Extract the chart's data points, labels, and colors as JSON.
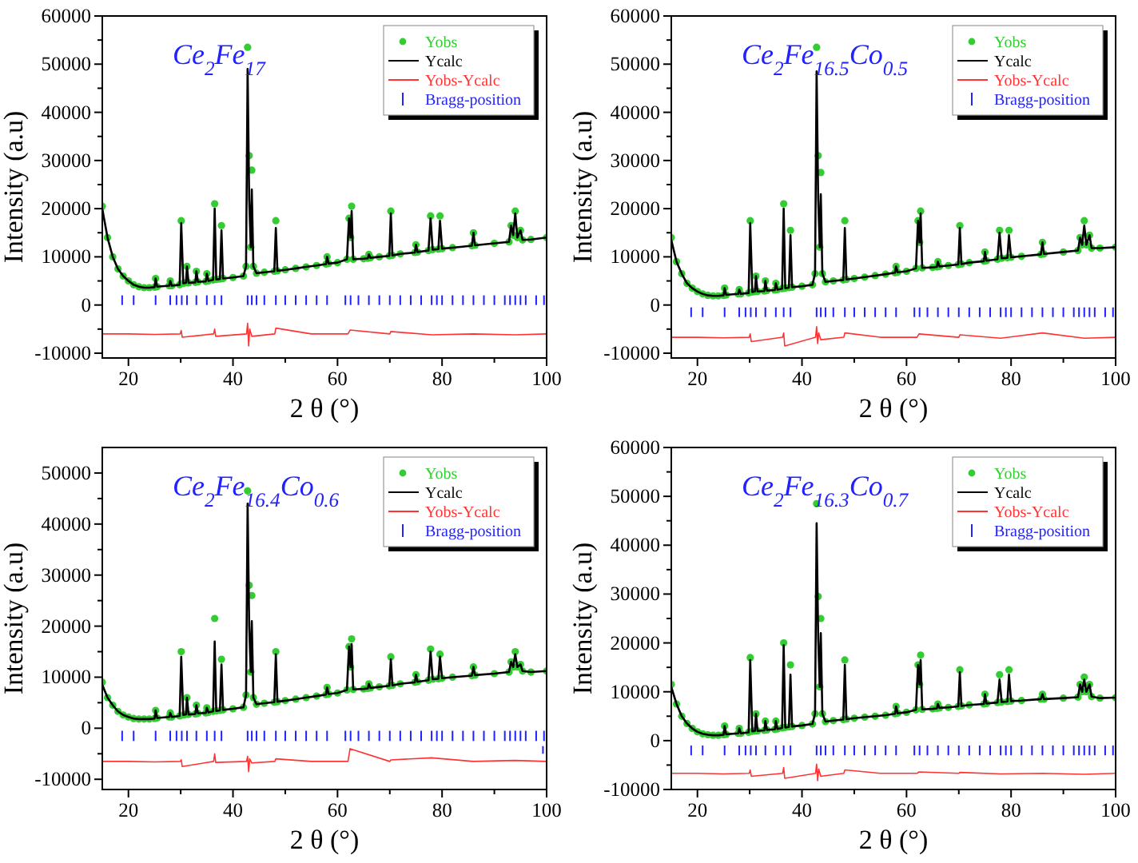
{
  "chart_data": [
    {
      "type": "line",
      "title": "Ce$_{2}$Fe$_{17}$",
      "xlabel": "2 θ (°)",
      "ylabel": "Intensity (a.u)",
      "legend": "top right",
      "xlim": [
        15,
        100
      ],
      "xticks": [
        20,
        {
          "value": 30,
          "label": null
        },
        40,
        {
          "value": 50,
          "label": null
        },
        60,
        {
          "value": 70,
          "label": null
        },
        80,
        {
          "value": 90,
          "label": null
        },
        100
      ],
      "ylim": [
        -11000,
        60000
      ],
      "yticks": [
        -10000,
        {
          "value": -5000,
          "label": null
        },
        0,
        {
          "value": 5000,
          "label": null
        },
        10000,
        {
          "value": 15000,
          "label": null
        },
        20000,
        {
          "value": 25000,
          "label": null
        },
        30000,
        {
          "value": 35000,
          "label": null
        },
        40000,
        {
          "value": 45000,
          "label": null
        },
        50000,
        {
          "value": 55000,
          "label": null
        },
        60000
      ],
      "x": [
        15,
        16,
        17,
        18,
        19,
        20,
        21,
        22,
        23,
        24,
        25,
        25.2,
        25.5,
        27.8,
        28,
        28.3,
        29.8,
        30.1,
        30.5,
        31,
        31.2,
        31.5,
        32.8,
        33,
        33.3,
        34.8,
        35,
        35.3,
        36.2,
        36.5,
        36.8,
        37.5,
        37.8,
        38.1,
        40,
        42,
        42.5,
        42.8,
        43.1,
        43.4,
        43.6,
        43.9,
        44.5,
        46,
        47.9,
        48.2,
        48.5,
        50,
        52,
        54,
        56,
        57.8,
        58,
        58.3,
        60,
        61.8,
        62.2,
        62.5,
        62.7,
        63,
        65,
        65.8,
        66,
        66.3,
        68,
        69.9,
        70.2,
        70.5,
        72,
        74.8,
        75,
        75.3,
        77.4,
        77.8,
        78.2,
        79.3,
        79.6,
        80,
        82,
        85.7,
        86,
        86.3,
        90,
        92.8,
        93.2,
        93.6,
        94,
        94.4,
        95,
        95.4,
        97,
        100
      ],
      "series": [
        {
          "name": "Yobs",
          "type": "scatter",
          "marker": "circle",
          "color": "#33cc33",
          "values": [
            20500,
            14000,
            10000,
            7500,
            6000,
            5000,
            4200,
            3800,
            3600,
            3600,
            3700,
            5500,
            3800,
            4000,
            5000,
            4000,
            4200,
            17500,
            4500,
            4600,
            8000,
            4600,
            4700,
            7000,
            4800,
            4900,
            6500,
            5000,
            5200,
            21000,
            5300,
            5400,
            16500,
            5500,
            5700,
            6000,
            8000,
            53500,
            31000,
            12000,
            28000,
            8000,
            6600,
            6800,
            7000,
            17500,
            7100,
            7300,
            7600,
            7900,
            8200,
            8500,
            10000,
            8600,
            8800,
            9500,
            18000,
            14000,
            20500,
            9500,
            9600,
            9700,
            10500,
            9800,
            10000,
            10200,
            19500,
            10300,
            10600,
            10900,
            12500,
            11000,
            11300,
            18500,
            11500,
            11600,
            18500,
            11700,
            11900,
            12300,
            15000,
            12400,
            12800,
            13100,
            16500,
            14500,
            19500,
            14000,
            15500,
            13500,
            13600,
            14000
          ]
        },
        {
          "name": "Ycalc",
          "color": "#000000",
          "values": [
            20000,
            14000,
            10000,
            7500,
            6000,
            5000,
            4200,
            3800,
            3600,
            3600,
            3700,
            5500,
            3800,
            4000,
            5000,
            4000,
            4200,
            17000,
            4500,
            4600,
            8000,
            4600,
            4700,
            7000,
            4800,
            4900,
            6500,
            5000,
            5200,
            20000,
            5300,
            5400,
            15500,
            5500,
            5700,
            6000,
            8000,
            49000,
            22000,
            12000,
            24000,
            8000,
            6600,
            6800,
            7000,
            16000,
            7100,
            7300,
            7600,
            7900,
            8200,
            8500,
            10000,
            8600,
            8800,
            9500,
            18000,
            14000,
            19500,
            9500,
            9600,
            9700,
            10500,
            9800,
            10000,
            10200,
            19000,
            10300,
            10600,
            10900,
            12500,
            11000,
            11300,
            18000,
            11500,
            11600,
            17500,
            11700,
            11900,
            12300,
            15000,
            12400,
            12800,
            13100,
            16500,
            14500,
            19000,
            14000,
            15500,
            13500,
            13600,
            14000
          ]
        },
        {
          "name": "Yobs-Ycalc",
          "type": "line",
          "color": "#ff3333",
          "x": [
            15,
            20,
            25,
            29.9,
            30.1,
            30.3,
            36.3,
            36.5,
            36.7,
            42.6,
            42.8,
            43.0,
            43.2,
            43.6,
            48.0,
            48.2,
            55,
            62.0,
            62.4,
            70.0,
            70.2,
            78,
            86,
            94,
            100
          ],
          "values": [
            -6000,
            -6000,
            -6100,
            -6000,
            -5300,
            -6700,
            -6000,
            -5000,
            -6500,
            -6000,
            -3800,
            -8500,
            -5000,
            -6500,
            -6000,
            -4800,
            -6000,
            -6000,
            -5200,
            -6000,
            -5500,
            -6200,
            -6000,
            -6200,
            -6000
          ]
        },
        {
          "name": "Bragg-position",
          "type": "bar",
          "color": "#2222ff",
          "x": [
            18.8,
            21,
            25.2,
            28,
            29.2,
            30.2,
            31.2,
            33,
            35,
            36.5,
            37.8,
            42.8,
            43.6,
            44.5,
            46,
            48.2,
            50,
            52,
            54,
            56,
            58,
            61.5,
            62.5,
            64,
            66,
            68,
            70,
            72,
            74,
            76,
            78,
            79,
            80,
            82,
            84,
            86,
            88,
            90,
            92,
            93,
            94,
            95,
            96,
            98,
            99.5
          ],
          "base": [
            0,
            0,
            0,
            0,
            0,
            0,
            0,
            0,
            0,
            0,
            0,
            0,
            0,
            0,
            0,
            0,
            0,
            0,
            0,
            0,
            0,
            0,
            0,
            0,
            0,
            0,
            0,
            0,
            0,
            0,
            0,
            0,
            0,
            0,
            0,
            0,
            0,
            0,
            0,
            0,
            0,
            0,
            0,
            0,
            0
          ],
          "values": [
            2000,
            2000,
            2000,
            2000,
            2000,
            2000,
            2000,
            2000,
            2000,
            2000,
            2000,
            2000,
            2000,
            2000,
            2000,
            2000,
            2000,
            2000,
            2000,
            2000,
            2000,
            2000,
            2000,
            2000,
            2000,
            2000,
            2000,
            2000,
            2000,
            2000,
            2000,
            2000,
            2000,
            2000,
            2000,
            2000,
            2000,
            2000,
            2000,
            2000,
            2000,
            2000,
            2000,
            2000,
            2000
          ]
        }
      ]
    },
    {
      "type": "line",
      "title": "Ce$_{2}$Fe$_{16.5}$Co$_{0.5}$",
      "xlabel": "2 θ (°)",
      "ylabel": "Intensity (a.u)",
      "legend": "top right",
      "xlim": [
        15,
        100
      ],
      "xticks": [
        20,
        {
          "value": 30,
          "label": null
        },
        40,
        {
          "value": 50,
          "label": null
        },
        60,
        {
          "value": 70,
          "label": null
        },
        80,
        {
          "value": 90,
          "label": null
        },
        100
      ],
      "ylim": [
        -11000,
        60000
      ],
      "yticks": [
        -10000,
        {
          "value": -5000,
          "label": null
        },
        0,
        {
          "value": 5000,
          "label": null
        },
        10000,
        {
          "value": 15000,
          "label": null
        },
        20000,
        {
          "value": 25000,
          "label": null
        },
        30000,
        {
          "value": 35000,
          "label": null
        },
        40000,
        {
          "value": 45000,
          "label": null
        },
        50000,
        {
          "value": 55000,
          "label": null
        },
        60000
      ],
      "x": [
        15,
        16,
        17,
        18,
        19,
        20,
        21,
        22,
        23,
        24,
        25,
        25.2,
        25.5,
        27.8,
        28,
        28.3,
        29.8,
        30.1,
        30.5,
        31,
        31.2,
        31.5,
        32.8,
        33,
        33.3,
        34.8,
        35,
        35.3,
        36.2,
        36.5,
        36.8,
        37.5,
        37.8,
        38.1,
        40,
        42,
        42.5,
        42.8,
        43.1,
        43.4,
        43.6,
        43.9,
        44.5,
        46,
        47.9,
        48.2,
        48.5,
        50,
        52,
        54,
        56,
        57.8,
        58,
        58.3,
        60,
        61.8,
        62.2,
        62.5,
        62.7,
        63,
        65,
        65.8,
        66,
        66.3,
        68,
        69.9,
        70.2,
        70.5,
        72,
        74.8,
        75,
        75.3,
        77.4,
        77.8,
        78.2,
        79.3,
        79.6,
        80,
        82,
        85.7,
        86,
        86.3,
        90,
        92.8,
        93.2,
        93.6,
        94,
        94.4,
        95,
        95.4,
        97,
        100
      ],
      "series": [
        {
          "name": "Yobs",
          "type": "scatter",
          "marker": "circle",
          "color": "#33cc33",
          "values": [
            14000,
            9000,
            6500,
            4500,
            3500,
            2800,
            2300,
            2000,
            1900,
            1900,
            2000,
            3500,
            2100,
            2300,
            3200,
            2300,
            2500,
            17500,
            2700,
            2800,
            6000,
            2800,
            2900,
            5000,
            3000,
            3100,
            4500,
            3200,
            3400,
            21000,
            3500,
            3600,
            15500,
            3700,
            3900,
            4200,
            6500,
            53500,
            31000,
            12000,
            27500,
            6500,
            4800,
            5000,
            5200,
            17500,
            5300,
            5500,
            5800,
            6100,
            6400,
            6700,
            8000,
            6800,
            7000,
            7600,
            17500,
            13000,
            19500,
            7700,
            7800,
            7900,
            9000,
            8000,
            8200,
            8400,
            16500,
            8500,
            8800,
            9100,
            11000,
            9200,
            9500,
            15500,
            9700,
            9800,
            15500,
            9900,
            10100,
            10500,
            13000,
            10600,
            11000,
            11300,
            14000,
            12500,
            17500,
            12500,
            14500,
            11800,
            11800,
            12000
          ]
        },
        {
          "name": "Ycalc",
          "color": "#000000",
          "values": [
            13500,
            9000,
            6500,
            4500,
            3500,
            2800,
            2300,
            2000,
            1900,
            1900,
            2000,
            3500,
            2100,
            2300,
            3200,
            2300,
            2500,
            17000,
            2700,
            2800,
            6000,
            2800,
            2900,
            5000,
            3000,
            3100,
            4500,
            3200,
            3400,
            20000,
            3500,
            3600,
            14500,
            3700,
            3900,
            4200,
            6500,
            48500,
            22000,
            12000,
            23000,
            6500,
            4800,
            5000,
            5200,
            16000,
            5300,
            5500,
            5800,
            6100,
            6400,
            6700,
            8000,
            6800,
            7000,
            7600,
            17500,
            13000,
            19000,
            7700,
            7800,
            7900,
            9000,
            8000,
            8200,
            8400,
            16000,
            8500,
            8800,
            9100,
            11000,
            9200,
            9500,
            15000,
            9700,
            9800,
            14500,
            9900,
            10100,
            10500,
            13000,
            10600,
            11000,
            11300,
            14000,
            12500,
            16500,
            12500,
            14500,
            11800,
            11800,
            12000
          ]
        },
        {
          "name": "Yobs-Ycalc",
          "type": "line",
          "color": "#ff3333",
          "x": [
            15,
            20,
            25,
            29.9,
            30.1,
            30.3,
            36.3,
            36.5,
            36.7,
            42.6,
            42.8,
            43.0,
            43.2,
            43.6,
            48.0,
            48.2,
            55,
            62.0,
            62.4,
            70.0,
            70.2,
            78,
            86,
            94,
            100
          ],
          "values": [
            -6700,
            -6700,
            -6800,
            -6700,
            -6000,
            -7600,
            -6700,
            -5800,
            -8500,
            -6700,
            -4500,
            -8000,
            -5800,
            -7200,
            -6700,
            -5800,
            -6700,
            -6700,
            -6000,
            -6700,
            -6200,
            -6900,
            -5800,
            -6900,
            -6700
          ]
        },
        {
          "name": "Bragg-position",
          "type": "bar",
          "color": "#2222ff",
          "x": [
            18.8,
            21,
            25.2,
            28,
            29.2,
            30.2,
            31.2,
            33,
            35,
            36.5,
            37.8,
            42.8,
            43.6,
            44.5,
            46,
            48.2,
            50,
            52,
            54,
            56,
            58,
            61.5,
            62.5,
            64,
            66,
            68,
            70,
            72,
            74,
            76,
            78,
            79,
            80,
            82,
            84,
            86,
            88,
            90,
            92,
            93,
            94,
            95,
            96,
            98,
            99.5
          ],
          "base": [
            -2500,
            -2500,
            -2500,
            -2500,
            -2500,
            -2500,
            -2500,
            -2500,
            -2500,
            -2500,
            -2500,
            -2500,
            -2500,
            -2500,
            -2500,
            -2500,
            -2500,
            -2500,
            -2500,
            -2500,
            -2500,
            -2500,
            -2500,
            -2500,
            -2500,
            -2500,
            -2500,
            -2500,
            -2500,
            -2500,
            -2500,
            -2500,
            -2500,
            -2500,
            -2500,
            -2500,
            -2500,
            -2500,
            -2500,
            -2500,
            -2500,
            -2500,
            -2500,
            -2500,
            -2500
          ],
          "values": [
            2000,
            2000,
            2000,
            2000,
            2000,
            2000,
            2000,
            2000,
            2000,
            2000,
            2000,
            2000,
            2000,
            2000,
            2000,
            2000,
            2000,
            2000,
            2000,
            2000,
            2000,
            2000,
            2000,
            2000,
            2000,
            2000,
            2000,
            2000,
            2000,
            2000,
            2000,
            2000,
            2000,
            2000,
            2000,
            2000,
            2000,
            2000,
            2000,
            2000,
            2000,
            2000,
            2000,
            2000,
            2000
          ]
        }
      ]
    },
    {
      "type": "line",
      "title": "Ce$_{2}$Fe$_{16.4}$Co$_{0.6}$",
      "xlabel": "2 θ (°)",
      "ylabel": "Intensity (a.u)",
      "legend": "top right",
      "xlim": [
        15,
        100
      ],
      "xticks": [
        20,
        {
          "value": 30,
          "label": null
        },
        40,
        {
          "value": 50,
          "label": null
        },
        60,
        {
          "value": 70,
          "label": null
        },
        80,
        {
          "value": 90,
          "label": null
        },
        100
      ],
      "ylim": [
        -12000,
        55000
      ],
      "yticks": [
        -10000,
        {
          "value": -5000,
          "label": null
        },
        0,
        {
          "value": 5000,
          "label": null
        },
        10000,
        {
          "value": 15000,
          "label": null
        },
        20000,
        {
          "value": 25000,
          "label": null
        },
        30000,
        {
          "value": 35000,
          "label": null
        },
        40000,
        {
          "value": 45000,
          "label": null
        },
        50000
      ],
      "x": [
        15,
        16,
        17,
        18,
        19,
        20,
        21,
        22,
        23,
        24,
        25,
        25.2,
        25.5,
        27.8,
        28,
        28.3,
        29.8,
        30.1,
        30.5,
        31,
        31.2,
        31.5,
        32.8,
        33,
        33.3,
        34.8,
        35,
        35.3,
        36.2,
        36.5,
        36.8,
        37.5,
        37.8,
        38.1,
        40,
        42,
        42.5,
        42.8,
        43.1,
        43.4,
        43.6,
        43.9,
        44.5,
        46,
        47.9,
        48.2,
        48.5,
        50,
        52,
        54,
        56,
        57.8,
        58,
        58.3,
        60,
        61.8,
        62.2,
        62.5,
        62.7,
        63,
        65,
        65.8,
        66,
        66.3,
        68,
        69.9,
        70.2,
        70.5,
        72,
        74.8,
        75,
        75.3,
        77.4,
        77.8,
        78.2,
        79.3,
        79.6,
        80,
        82,
        85.7,
        86,
        86.3,
        90,
        92.8,
        93.2,
        93.6,
        94,
        94.4,
        95,
        95.4,
        97,
        100
      ],
      "series": [
        {
          "name": "Yobs",
          "type": "scatter",
          "marker": "circle",
          "color": "#33cc33",
          "values": [
            9000,
            6000,
            4500,
            3300,
            2600,
            2200,
            1900,
            1800,
            1800,
            1800,
            1900,
            3500,
            2000,
            2200,
            3000,
            2200,
            2400,
            15000,
            2600,
            2700,
            6000,
            2700,
            2800,
            4500,
            2900,
            3000,
            4000,
            3100,
            3300,
            21500,
            3400,
            3500,
            13500,
            3600,
            3800,
            4100,
            6500,
            46500,
            28000,
            11000,
            26000,
            6000,
            4700,
            4900,
            5100,
            15000,
            5200,
            5400,
            5700,
            6000,
            6300,
            6600,
            8000,
            6700,
            6900,
            7500,
            16000,
            12000,
            17500,
            7600,
            7700,
            7800,
            8700,
            7900,
            8100,
            8300,
            14000,
            8400,
            8700,
            9000,
            10500,
            9100,
            9400,
            15500,
            9600,
            9700,
            14500,
            9800,
            10000,
            10300,
            12000,
            10400,
            10700,
            11000,
            13000,
            12000,
            15000,
            12000,
            12500,
            11200,
            11000,
            11200
          ]
        },
        {
          "name": "Ycalc",
          "color": "#000000",
          "values": [
            8500,
            6000,
            4500,
            3300,
            2600,
            2200,
            1900,
            1800,
            1800,
            1800,
            1900,
            3500,
            2000,
            2200,
            3000,
            2200,
            2400,
            14000,
            2600,
            2700,
            6000,
            2700,
            2800,
            4500,
            2900,
            3000,
            4000,
            3100,
            3300,
            17000,
            3400,
            3500,
            12500,
            3600,
            3800,
            4100,
            6500,
            44000,
            20000,
            11000,
            21000,
            6000,
            4700,
            4900,
            5100,
            14500,
            5200,
            5400,
            5700,
            6000,
            6300,
            6600,
            8000,
            6700,
            6900,
            7500,
            16000,
            12000,
            16500,
            7600,
            7700,
            7800,
            8700,
            7900,
            8100,
            8300,
            13500,
            8400,
            8700,
            9000,
            10500,
            9100,
            9400,
            15000,
            9600,
            9700,
            14000,
            9800,
            10000,
            10300,
            12000,
            10400,
            10700,
            11000,
            13000,
            12000,
            14500,
            12000,
            12500,
            11200,
            11000,
            11200
          ]
        },
        {
          "name": "Yobs-Ycalc",
          "type": "line",
          "color": "#ff3333",
          "x": [
            15,
            20,
            25,
            29.9,
            30.1,
            30.3,
            36.3,
            36.5,
            36.7,
            42.6,
            42.8,
            43.0,
            43.2,
            43.6,
            48.0,
            48.2,
            55,
            62.0,
            62.4,
            70.0,
            70.2,
            78,
            86,
            94,
            100
          ],
          "values": [
            -6500,
            -6500,
            -6600,
            -6500,
            -6200,
            -7500,
            -6500,
            -5000,
            -6700,
            -6500,
            -5500,
            -8500,
            -6000,
            -6800,
            -6500,
            -6000,
            -6500,
            -6500,
            -4000,
            -6500,
            -6200,
            -5800,
            -6500,
            -6300,
            -6500
          ]
        },
        {
          "name": "Bragg-position",
          "type": "bar",
          "color": "#2222ff",
          "x": [
            18.8,
            21,
            25.2,
            28,
            29.2,
            30.2,
            31.2,
            33,
            35,
            36.5,
            37.8,
            42.8,
            43.6,
            44.5,
            46,
            48.2,
            50,
            52,
            54,
            56,
            58,
            61.5,
            62.5,
            64,
            66,
            68,
            70,
            72,
            74,
            76,
            78,
            79,
            80,
            82,
            84,
            86,
            88,
            90,
            92,
            93,
            94,
            95,
            96,
            98,
            99.3,
            99.5
          ],
          "base": [
            -2500,
            -2500,
            -2500,
            -2500,
            -2500,
            -2500,
            -2500,
            -2500,
            -2500,
            -2500,
            -2500,
            -2500,
            -2500,
            -2500,
            -2500,
            -2500,
            -2500,
            -2500,
            -2500,
            -2500,
            -2500,
            -2500,
            -2500,
            -2500,
            -2500,
            -2500,
            -2500,
            -2500,
            -2500,
            -2500,
            -2500,
            -2500,
            -2500,
            -2500,
            -2500,
            -2500,
            -2500,
            -2500,
            -2500,
            -2500,
            -2500,
            -2500,
            -2500,
            -2500,
            -5000,
            -2500
          ],
          "values": [
            2000,
            2000,
            2000,
            2000,
            2000,
            2000,
            2000,
            2000,
            2000,
            2000,
            2000,
            2000,
            2000,
            2000,
            2000,
            2000,
            2000,
            2000,
            2000,
            2000,
            2000,
            2000,
            2000,
            2000,
            2000,
            2000,
            2000,
            2000,
            2000,
            2000,
            2000,
            2000,
            2000,
            2000,
            2000,
            2000,
            2000,
            2000,
            2000,
            2000,
            2000,
            2000,
            2000,
            2000,
            1500,
            2000
          ]
        }
      ]
    },
    {
      "type": "line",
      "title": "Ce$_{2}$Fe$_{16.3}$Co$_{0.7}$",
      "xlabel": "2 θ (°)",
      "ylabel": "Intensity (a.u)",
      "legend": "top right",
      "xlim": [
        15,
        100
      ],
      "xticks": [
        20,
        {
          "value": 30,
          "label": null
        },
        40,
        {
          "value": 50,
          "label": null
        },
        60,
        {
          "value": 70,
          "label": null
        },
        80,
        {
          "value": 90,
          "label": null
        },
        100
      ],
      "ylim": [
        -10000,
        60000
      ],
      "yticks": [
        -10000,
        {
          "value": -5000,
          "label": null
        },
        0,
        {
          "value": 5000,
          "label": null
        },
        10000,
        {
          "value": 15000,
          "label": null
        },
        20000,
        {
          "value": 25000,
          "label": null
        },
        30000,
        {
          "value": 35000,
          "label": null
        },
        40000,
        {
          "value": 45000,
          "label": null
        },
        50000,
        {
          "value": 55000,
          "label": null
        },
        60000
      ],
      "x": [
        15,
        16,
        17,
        18,
        19,
        20,
        21,
        22,
        23,
        24,
        25,
        25.2,
        25.5,
        27.8,
        28,
        28.3,
        29.8,
        30.1,
        30.5,
        31,
        31.2,
        31.5,
        32.8,
        33,
        33.3,
        34.8,
        35,
        35.3,
        36.2,
        36.5,
        36.8,
        37.5,
        37.8,
        38.1,
        40,
        42,
        42.5,
        42.8,
        43.1,
        43.4,
        43.6,
        43.9,
        44.5,
        46,
        47.9,
        48.2,
        48.5,
        50,
        52,
        54,
        56,
        57.8,
        58,
        58.3,
        60,
        61.8,
        62.2,
        62.5,
        62.7,
        63,
        65,
        65.8,
        66,
        66.3,
        68,
        69.9,
        70.2,
        70.5,
        72,
        74.8,
        75,
        75.3,
        77.4,
        77.8,
        78.2,
        79.3,
        79.6,
        80,
        82,
        85.7,
        86,
        86.3,
        90,
        92.8,
        93.2,
        93.6,
        94,
        94.4,
        95,
        95.4,
        97,
        100
      ],
      "series": [
        {
          "name": "Yobs",
          "type": "scatter",
          "marker": "circle",
          "color": "#33cc33",
          "values": [
            11500,
            7500,
            5000,
            3500,
            2500,
            1800,
            1400,
            1200,
            1100,
            1100,
            1200,
            3000,
            1300,
            1500,
            2500,
            1500,
            1700,
            17000,
            1900,
            2000,
            5500,
            2000,
            2100,
            4000,
            2200,
            2300,
            4000,
            2400,
            2600,
            20000,
            2700,
            2800,
            15500,
            2900,
            3100,
            3400,
            5500,
            48500,
            29500,
            11000,
            25000,
            5500,
            3900,
            4100,
            4300,
            16500,
            4400,
            4600,
            4800,
            5000,
            5200,
            5500,
            7000,
            5600,
            5800,
            6300,
            15500,
            11500,
            17500,
            6400,
            6500,
            6600,
            7500,
            6700,
            6800,
            7000,
            14500,
            7100,
            7300,
            7500,
            9500,
            7600,
            7800,
            13500,
            7900,
            8000,
            14500,
            8100,
            8200,
            8500,
            9500,
            8500,
            8700,
            8900,
            11500,
            10000,
            13000,
            10000,
            11500,
            9000,
            8700,
            8800
          ]
        },
        {
          "name": "Ycalc",
          "color": "#000000",
          "values": [
            11000,
            7500,
            5000,
            3500,
            2500,
            1800,
            1400,
            1200,
            1100,
            1100,
            1200,
            3000,
            1300,
            1500,
            2500,
            1500,
            1700,
            16500,
            1900,
            2000,
            5500,
            2000,
            2100,
            4000,
            2200,
            2300,
            4000,
            2400,
            2600,
            19500,
            2700,
            2800,
            13500,
            2900,
            3100,
            3400,
            5500,
            44500,
            21000,
            11000,
            22000,
            5500,
            3900,
            4100,
            4300,
            15500,
            4400,
            4600,
            4800,
            5000,
            5200,
            5500,
            7000,
            5600,
            5800,
            6300,
            15500,
            11500,
            16500,
            6400,
            6500,
            6600,
            7500,
            6700,
            6800,
            7000,
            14000,
            7100,
            7300,
            7500,
            9500,
            7600,
            7800,
            12500,
            7900,
            8000,
            13500,
            8100,
            8200,
            8500,
            9500,
            8500,
            8700,
            8900,
            11500,
            10000,
            12500,
            10000,
            11500,
            9000,
            8700,
            8800
          ]
        },
        {
          "name": "Yobs-Ycalc",
          "type": "line",
          "color": "#ff3333",
          "x": [
            15,
            20,
            25,
            29.9,
            30.1,
            30.3,
            36.3,
            36.5,
            36.7,
            42.6,
            42.8,
            43.0,
            43.2,
            43.6,
            48.0,
            48.2,
            55,
            62.0,
            62.4,
            70.0,
            70.2,
            78,
            86,
            94,
            100
          ],
          "values": [
            -6700,
            -6700,
            -6800,
            -6700,
            -6000,
            -7300,
            -6700,
            -5500,
            -7700,
            -6700,
            -4800,
            -8200,
            -5800,
            -7300,
            -6700,
            -6000,
            -6700,
            -6700,
            -6400,
            -6700,
            -6500,
            -6800,
            -6700,
            -6900,
            -6700
          ]
        },
        {
          "name": "Bragg-position",
          "type": "bar",
          "color": "#2222ff",
          "x": [
            18.8,
            21,
            25.2,
            28,
            29.2,
            30.2,
            31.2,
            33,
            35,
            36.5,
            37.8,
            42.8,
            43.6,
            44.5,
            46,
            48.2,
            50,
            52,
            54,
            56,
            58,
            61.5,
            62.5,
            64,
            66,
            68,
            70,
            72,
            74,
            76,
            78,
            79,
            80,
            82,
            84,
            86,
            88,
            90,
            92,
            93,
            94,
            95,
            96,
            98,
            99.5
          ],
          "base": [
            -3000,
            -3000,
            -3000,
            -3000,
            -3000,
            -3000,
            -3000,
            -3000,
            -3000,
            -3000,
            -3000,
            -3000,
            -3000,
            -3000,
            -3000,
            -3000,
            -3000,
            -3000,
            -3000,
            -3000,
            -3000,
            -3000,
            -3000,
            -3000,
            -3000,
            -3000,
            -3000,
            -3000,
            -3000,
            -3000,
            -3000,
            -3000,
            -3000,
            -3000,
            -3000,
            -3000,
            -3000,
            -3000,
            -3000,
            -3000,
            -3000,
            -3000,
            -3000,
            -3000,
            -3000
          ],
          "values": [
            2000,
            2000,
            2000,
            2000,
            2000,
            2000,
            2000,
            2000,
            2000,
            2000,
            2000,
            2000,
            2000,
            2000,
            2000,
            2000,
            2000,
            2000,
            2000,
            2000,
            2000,
            2000,
            2000,
            2000,
            2000,
            2000,
            2000,
            2000,
            2000,
            2000,
            2000,
            2000,
            2000,
            2000,
            2000,
            2000,
            2000,
            2000,
            2000,
            2000,
            2000,
            2000,
            2000,
            2000,
            2000
          ]
        }
      ]
    }
  ]
}
